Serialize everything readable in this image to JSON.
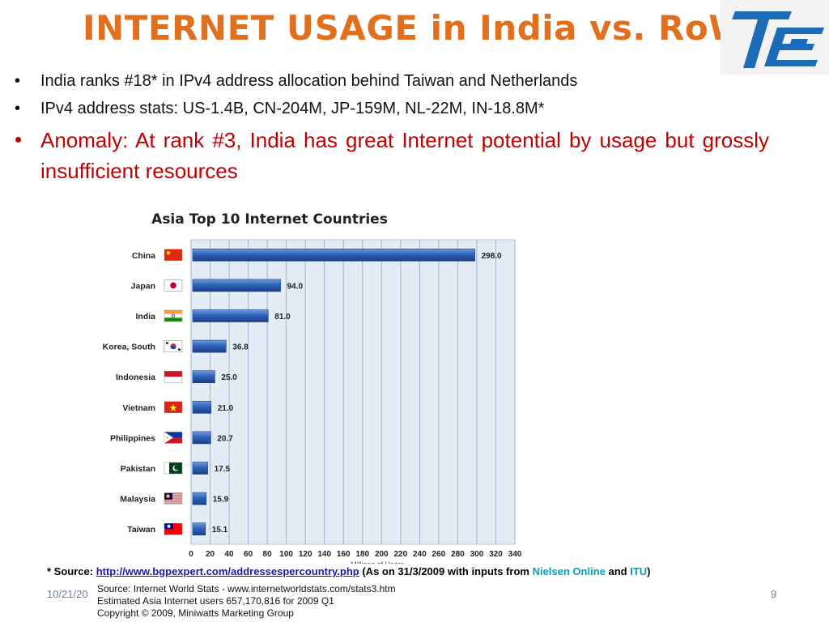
{
  "slide": {
    "title": "INTERNET USAGE in India vs. RoW",
    "bullets": [
      {
        "text": "India ranks #18* in IPv4 address allocation behind Taiwan and Netherlands"
      },
      {
        "text": "IPv4 address stats: US-1.4B, CN-204M, JP-159M, NL-22M, IN-18.8M*"
      },
      {
        "text": "Anomaly: At rank #3, India has great Internet potential by usage but grossly insufficient resources"
      }
    ],
    "source": {
      "prefix": "* Source: ",
      "link": "http://www.bgpexpert.com/addressespercountry.php",
      "middle": " (As on 31/3/2009 with inputs from ",
      "org1": "Nielsen Online",
      "and": " and ",
      "org2": "ITU",
      "suffix": ")"
    },
    "date": "10/21/20",
    "page_number": "9",
    "colors": {
      "title": "#e0701e",
      "alert": "#c00000",
      "bar": "#2e63b8",
      "plot_bg": "#e3ebf5"
    }
  },
  "chart_data": {
    "type": "bar",
    "orientation": "horizontal",
    "title": "Asia Top 10 Internet Countries",
    "xlabel": "Millions of Users",
    "categories": [
      "China",
      "Japan",
      "India",
      "Korea, South",
      "Indonesia",
      "Vietnam",
      "Philippines",
      "Pakistan",
      "Malaysia",
      "Taiwan"
    ],
    "values": [
      298.0,
      94.0,
      81.0,
      36.8,
      25.0,
      21.0,
      20.7,
      17.5,
      15.9,
      15.1
    ],
    "value_labels": [
      "298.0",
      "94.0",
      "81.0",
      "36.8",
      "25.0",
      "21.0",
      "20.7",
      "17.5",
      "15.9",
      "15.1"
    ],
    "flag_icons": [
      "china-flag-icon",
      "japan-flag-icon",
      "india-flag-icon",
      "south-korea-flag-icon",
      "indonesia-flag-icon",
      "vietnam-flag-icon",
      "philippines-flag-icon",
      "pakistan-flag-icon",
      "malaysia-flag-icon",
      "taiwan-flag-icon"
    ],
    "xlim": [
      0,
      340
    ],
    "xticks": [
      0,
      20,
      40,
      60,
      80,
      100,
      120,
      140,
      160,
      180,
      200,
      220,
      240,
      260,
      280,
      300,
      320,
      340
    ],
    "grid": true,
    "notes": [
      "Source:  Internet World Stats  -  www.internetworldstats.com/stats3.htm",
      "Estimated Asia Internet users 657,170,816 for 2009 Q1",
      "Copyright © 2009, Miniwatts Marketing Group"
    ]
  }
}
